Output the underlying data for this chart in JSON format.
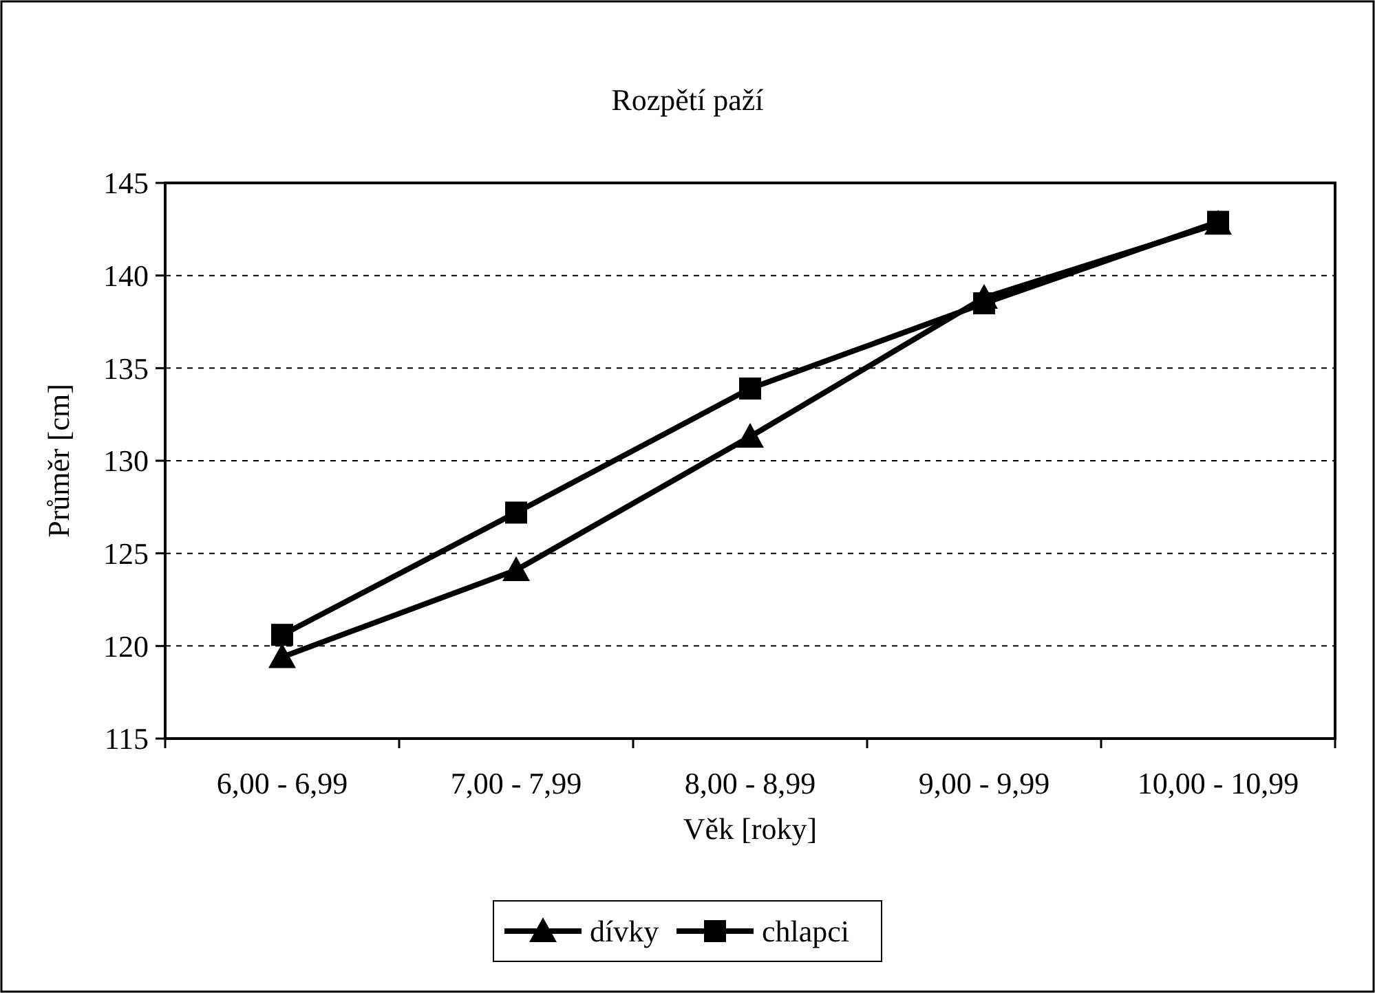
{
  "chart_data": {
    "type": "line",
    "title": "Rozpětí paží",
    "xlabel": "Věk [roky]",
    "ylabel": "Průměr [cm]",
    "categories": [
      "6,00 - 6,99",
      "7,00 - 7,99",
      "8,00 - 8,99",
      "9,00 - 9,99",
      "10,00 - 10,99"
    ],
    "series": [
      {
        "name": "dívky",
        "color": "#000000",
        "marker": "triangle",
        "values": [
          119.4,
          124.1,
          131.3,
          138.8,
          142.8
        ]
      },
      {
        "name": "chlapci",
        "color": "#000000",
        "marker": "square",
        "values": [
          120.6,
          127.2,
          133.9,
          138.5,
          142.9
        ]
      }
    ],
    "ylim": [
      115,
      145
    ],
    "yticks": [
      115,
      120,
      125,
      130,
      135,
      140,
      145
    ],
    "grid": "y",
    "legend": "bottom",
    "line_style": "solid"
  }
}
